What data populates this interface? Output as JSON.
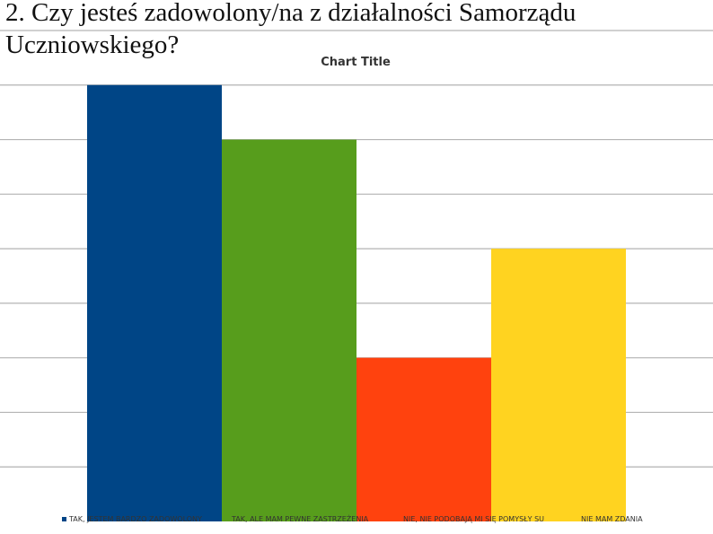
{
  "slide": {
    "title": "2. Czy jesteś zadowolony/na z działalności Samorządu\nUczniowskiego?"
  },
  "chart_data": {
    "type": "bar",
    "title": "Chart Title",
    "xlabel": "",
    "ylabel": "",
    "ylim": [
      0,
      9
    ],
    "grid": true,
    "legend_position": "bottom",
    "categories": [
      ""
    ],
    "series": [
      {
        "name": "TAK, JESTEM BARDZO ZADOWOLONY",
        "values": [
          8
        ],
        "color": "#004586"
      },
      {
        "name": "TAK, ALE MAM PEWNE ZASTRZEŻENIA",
        "values": [
          7
        ],
        "color": "#579D1C"
      },
      {
        "name": "NIE, NIE PODOBAJĄ MI SIĘ POMYSŁY SU",
        "values": [
          3
        ],
        "color": "#FF420E"
      },
      {
        "name": "NIE MAM ZDANIA",
        "values": [
          5
        ],
        "color": "#FFD320"
      }
    ]
  }
}
